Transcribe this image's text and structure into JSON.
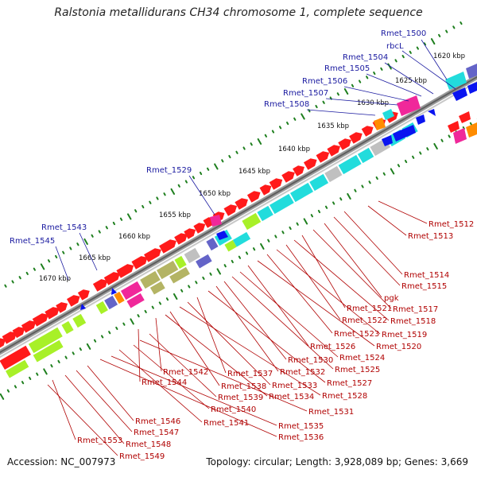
{
  "title": "Ralstonia metallidurans CH34 chromosome 1, complete sequence",
  "accession": "Accession: NC_007973",
  "topology": "Topology: circular; Length: 3,928,089 bp; Genes: 3,669",
  "colors": {
    "backbone": "#8c8c8c",
    "tick_green": "#1e7f1e",
    "forward_gene": "#ff1a1a",
    "cyan_gene": "#22dcdc",
    "blue_gene": "#0a14f0",
    "magenta_gene": "#f0289a",
    "olive_gene": "#b4b464",
    "lime_gene": "#a8f028",
    "orange_gene": "#ff8c00",
    "grey_gene": "#c0c0c0",
    "purple_gene": "#6464c8",
    "blue_label": "#1a1aa0",
    "red_label": "#b00000"
  },
  "kbp_labels": [
    "1620 kbp",
    "1625 kbp",
    "1630 kbp",
    "1635 kbp",
    "1640 kbp",
    "1645 kbp",
    "1650 kbp",
    "1655 kbp",
    "1660 kbp",
    "1665 kbp",
    "1670 kbp"
  ],
  "blue_labels": [
    "Rmet_1500",
    "rbcL",
    "Rmet_1504",
    "Rmet_1505",
    "Rmet_1506",
    "Rmet_1507",
    "Rmet_1508",
    "Rmet_1529",
    "Rmet_1543",
    "Rmet_1545"
  ],
  "red_labels": [
    "Rmet_1512",
    "Rmet_1513",
    "Rmet_1514",
    "Rmet_1515",
    "pgk",
    "Rmet_1517",
    "Rmet_1521",
    "Rmet_1518",
    "Rmet_1522",
    "Rmet_1519",
    "Rmet_1523",
    "Rmet_1520",
    "Rmet_1526",
    "Rmet_1524",
    "Rmet_1525",
    "Rmet_1530",
    "Rmet_1532",
    "Rmet_1527",
    "Rmet_1537",
    "Rmet_1533",
    "Rmet_1528",
    "Rmet_1542",
    "Rmet_1538",
    "Rmet_1534",
    "Rmet_1544",
    "Rmet_1539",
    "Rmet_1531",
    "Rmet_1540",
    "Rmet_1541",
    "Rmet_1535",
    "Rmet_1536",
    "Rmet_1546",
    "Rmet_1547",
    "Rmet_1548",
    "Rmet_1553",
    "Rmet_1549"
  ]
}
